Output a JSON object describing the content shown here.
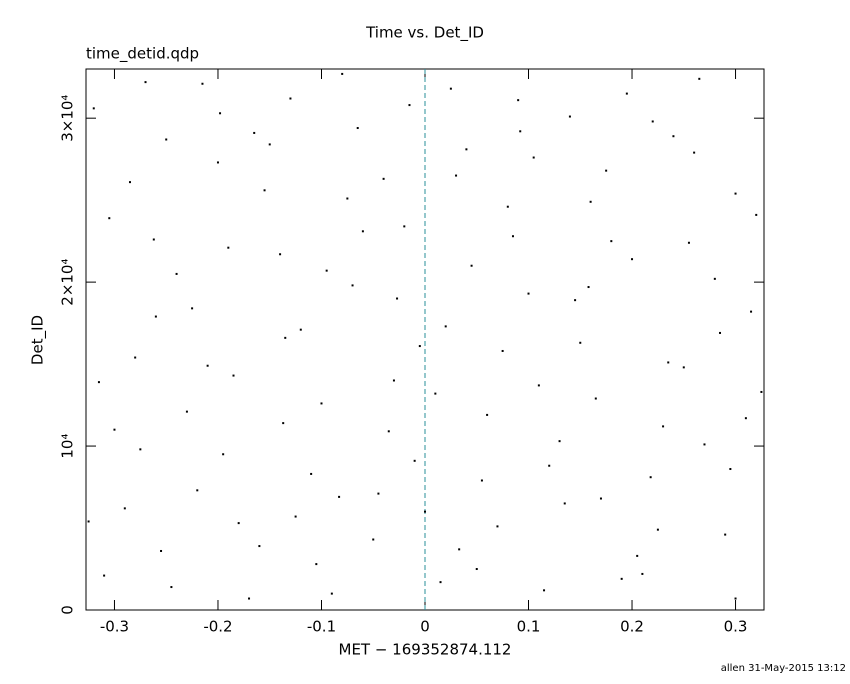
{
  "chart_data": {
    "type": "scatter",
    "title": "Time vs. Det_ID",
    "subtitle": "time_detid.qdp",
    "xlabel": "MET − 169352874.112",
    "ylabel": "Det_ID",
    "footer": "allen 31-May-2015 13:12",
    "color": "#000000",
    "reference_line": {
      "x": 0,
      "color": "#2a8f9a"
    },
    "xlim": [
      -0.3275,
      0.3275
    ],
    "ylim": [
      0,
      33000
    ],
    "xticks": [
      -0.3,
      -0.2,
      -0.1,
      0,
      0.1,
      0.2,
      0.3
    ],
    "yticks": [
      0,
      {
        "value": 10000,
        "label": "10⁴"
      },
      {
        "value": 20000,
        "label": "2×10⁴"
      },
      {
        "value": 30000,
        "label": "3×10⁴"
      }
    ],
    "x": [
      -0.31,
      -0.28,
      -0.25,
      -0.22,
      -0.19,
      -0.16,
      -0.13,
      -0.1,
      -0.07,
      -0.04,
      -0.01,
      0.02,
      0.05,
      0.08,
      0.11,
      0.14,
      0.17,
      0.2,
      0.23,
      0.26,
      0.29,
      0.315,
      -0.305,
      -0.275,
      -0.245,
      -0.215,
      -0.185,
      -0.155,
      -0.125,
      -0.095,
      -0.065,
      -0.035,
      -0.005,
      0.025,
      0.055,
      0.085,
      0.115,
      0.145,
      0.175,
      0.205,
      0.235,
      0.265,
      0.295,
      0.32,
      -0.32,
      -0.29,
      -0.26,
      -0.23,
      -0.2,
      -0.17,
      -0.14,
      -0.11,
      -0.08,
      -0.05,
      -0.02,
      0.01,
      0.04,
      0.07,
      0.1,
      0.13,
      0.16,
      0.19,
      0.22,
      0.25,
      0.28,
      0.31,
      -0.315,
      -0.285,
      -0.255,
      -0.225,
      -0.195,
      -0.165,
      -0.135,
      -0.105,
      -0.075,
      -0.045,
      -0.015,
      0.015,
      0.045,
      0.075,
      0.105,
      0.135,
      0.165,
      0.195,
      0.225,
      0.255,
      0.285,
      0.3,
      -0.3,
      -0.27,
      -0.24,
      -0.21,
      -0.18,
      -0.15,
      -0.12,
      -0.09,
      -0.06,
      -0.03,
      0,
      0.03,
      0.06,
      0.09,
      0.12,
      0.15,
      0.18,
      0.21,
      0.24,
      0.27,
      0.3,
      0.325,
      -0.325,
      -0.262,
      -0.198,
      -0.137,
      -0.083,
      -0.027,
      0.033,
      0.092,
      0.158,
      0.218
    ],
    "y": [
      2100,
      15400,
      28700,
      7300,
      22100,
      3900,
      31200,
      12600,
      19800,
      26300,
      9100,
      17300,
      2500,
      24600,
      13700,
      30100,
      6800,
      21400,
      11200,
      27900,
      4600,
      18200,
      23900,
      9800,
      1400,
      32100,
      14300,
      25600,
      5700,
      20700,
      29400,
      10900,
      16100,
      31800,
      7900,
      22800,
      1200,
      18900,
      26800,
      3300,
      15100,
      32400,
      8600,
      24100,
      30600,
      6200,
      17900,
      12100,
      27300,
      700,
      21700,
      8300,
      32700,
      4300,
      23400,
      13200,
      28100,
      5100,
      19300,
      10300,
      24900,
      1900,
      29800,
      14800,
      20200,
      11700,
      13900,
      26100,
      3600,
      18400,
      9500,
      29100,
      16600,
      2800,
      25100,
      7100,
      30800,
      1700,
      21000,
      15800,
      27600,
      6500,
      12900,
      31500,
      4900,
      22400,
      16900,
      700,
      11000,
      32200,
      20500,
      14900,
      5300,
      28400,
      17100,
      1000,
      23100,
      14000,
      6000,
      26500,
      11900,
      31100,
      8800,
      16300,
      22500,
      2200,
      28900,
      10100,
      25400,
      13300,
      5400,
      22600,
      30300,
      11400,
      6900,
      19000,
      3700,
      29200,
      19700,
      8100
    ]
  }
}
